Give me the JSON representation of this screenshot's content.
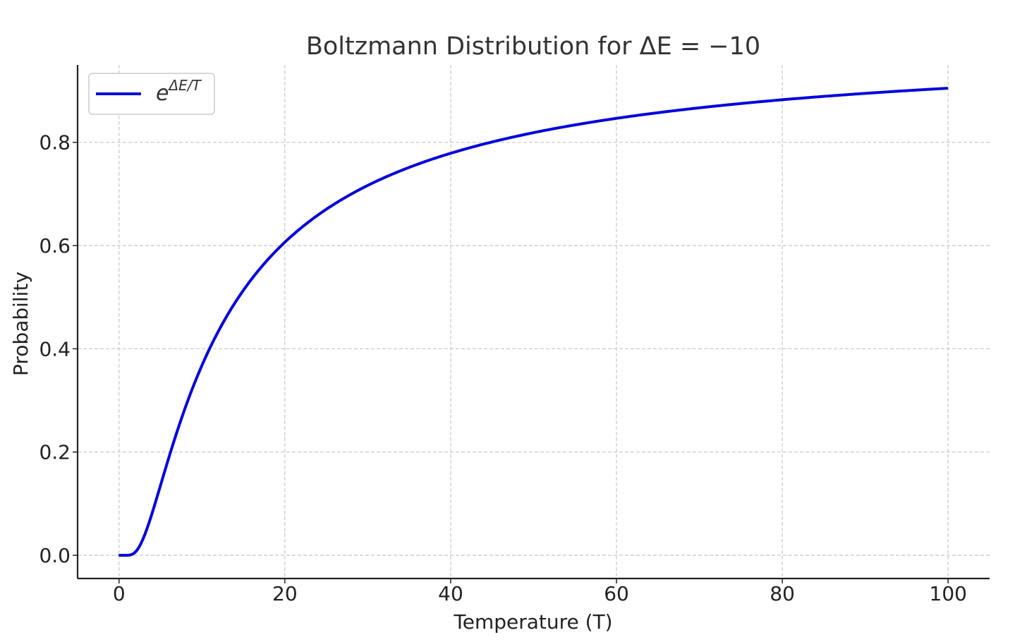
{
  "chart_data": {
    "type": "line",
    "title_text": "Boltzmann Distribution for ",
    "title_math": "ΔE = −10",
    "xlabel": "Temperature (T)",
    "ylabel": "Probability",
    "xlim": [
      -5,
      105
    ],
    "ylim": [
      -0.045,
      0.95
    ],
    "xticks": [
      0,
      20,
      40,
      60,
      80,
      100
    ],
    "xtick_labels": [
      "0",
      "20",
      "40",
      "60",
      "80",
      "100"
    ],
    "yticks": [
      0.0,
      0.2,
      0.4,
      0.6,
      0.8
    ],
    "ytick_labels": [
      "0.0",
      "0.2",
      "0.4",
      "0.6",
      "0.8"
    ],
    "grid": true,
    "legend_position": "top-left",
    "series": [
      {
        "name_base": "e",
        "name_sup": "ΔE/T",
        "color": "#0000dd",
        "delta_E": -10,
        "x": [
          0.1,
          1,
          2,
          3,
          4,
          5,
          6,
          8,
          10,
          12,
          15,
          20,
          25,
          30,
          40,
          50,
          60,
          70,
          80,
          90,
          100
        ],
        "y": [
          0.0,
          0.0,
          0.007,
          0.036,
          0.082,
          0.135,
          0.189,
          0.287,
          0.368,
          0.435,
          0.513,
          0.607,
          0.67,
          0.717,
          0.779,
          0.819,
          0.846,
          0.867,
          0.882,
          0.895,
          0.905
        ]
      }
    ]
  }
}
